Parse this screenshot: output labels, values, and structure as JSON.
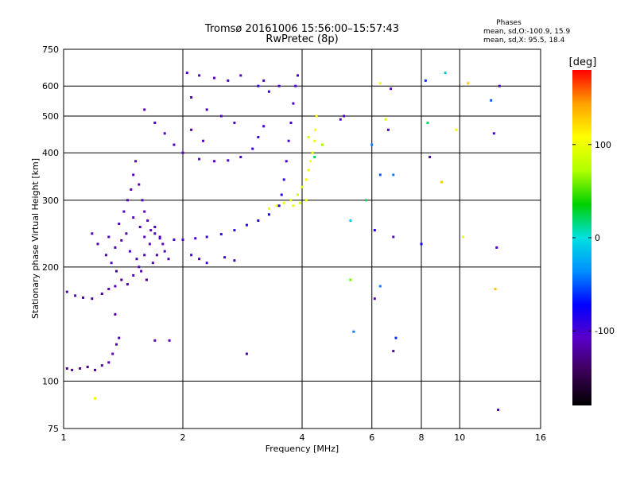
{
  "header": {
    "title_line1": "Tromsø 20161006 15:56:00–15:57:43",
    "title_line2": "RwPretec (8p)",
    "stats_title": "Phases",
    "stats_o": "mean, sd,O:-100.9, 15.9",
    "stats_x": "mean, sd,X:  95.5, 18.4"
  },
  "colorbar": {
    "unit_label": "[deg]",
    "min": -180,
    "max": 180,
    "ticks": [
      {
        "value": 100,
        "label": "100"
      },
      {
        "value": 0,
        "label": "0"
      },
      {
        "value": -100,
        "label": "-100"
      }
    ],
    "colors": [
      "#000000",
      "#3a0055",
      "#5a00c8",
      "#0000ff",
      "#0090ff",
      "#00e0e0",
      "#00d000",
      "#b0ff00",
      "#ffff00",
      "#ffa000",
      "#ff0000"
    ]
  },
  "chart_data": {
    "type": "scatter",
    "title": "Tromsø 20161006 15:56:00–15:57:43 RwPretec (8p)",
    "xlabel": "Frequency [MHz]",
    "ylabel": "Stationary phase Virtual Height [km]",
    "xscale": "log",
    "yscale": "log",
    "xlim": [
      1,
      16
    ],
    "ylim": [
      75,
      750
    ],
    "grid": true,
    "x_ticks": [
      1,
      2,
      4,
      6,
      8,
      10,
      16
    ],
    "x_tick_labels": [
      "1",
      "2",
      "4",
      "6",
      "8",
      "10",
      "16"
    ],
    "y_ticks": [
      75,
      100,
      200,
      300,
      400,
      500,
      600,
      750
    ],
    "y_tick_labels": [
      "75",
      "100",
      "200",
      "300",
      "400",
      "500",
      "600",
      "750"
    ],
    "color_variable": "Phase [deg]",
    "series": [
      {
        "points": [
          [
            1.02,
            108,
            -125
          ],
          [
            1.05,
            107,
            -120
          ],
          [
            1.1,
            108,
            -125
          ],
          [
            1.15,
            109,
            -130
          ],
          [
            1.2,
            107,
            -125
          ],
          [
            1.25,
            110,
            -120
          ],
          [
            1.3,
            112,
            -115
          ],
          [
            1.33,
            118,
            -110
          ],
          [
            1.36,
            125,
            -110
          ],
          [
            1.38,
            130,
            -115
          ],
          [
            1.02,
            172,
            -120
          ],
          [
            1.07,
            168,
            -120
          ],
          [
            1.12,
            166,
            -125
          ],
          [
            1.18,
            165,
            -125
          ],
          [
            1.25,
            170,
            -120
          ],
          [
            1.3,
            175,
            -115
          ],
          [
            1.35,
            178,
            -115
          ]
        ]
      },
      {
        "points": [
          [
            1.18,
            245,
            -115
          ],
          [
            1.22,
            230,
            -120
          ],
          [
            1.28,
            215,
            -120
          ],
          [
            1.32,
            205,
            -115
          ],
          [
            1.36,
            195,
            -120
          ],
          [
            1.4,
            185,
            -125
          ],
          [
            1.45,
            180,
            -120
          ],
          [
            1.5,
            190,
            -115
          ],
          [
            1.55,
            200,
            -110
          ],
          [
            1.6,
            215,
            -115
          ],
          [
            1.65,
            230,
            -110
          ],
          [
            1.7,
            255,
            -115
          ],
          [
            1.75,
            240,
            -110
          ],
          [
            1.8,
            220,
            -105
          ],
          [
            1.38,
            260,
            -115
          ],
          [
            1.42,
            280,
            -110
          ],
          [
            1.45,
            300,
            -110
          ],
          [
            1.48,
            320,
            -115
          ],
          [
            1.5,
            350,
            -110
          ],
          [
            1.52,
            380,
            -115
          ],
          [
            1.55,
            330,
            -110
          ],
          [
            1.58,
            300,
            -105
          ],
          [
            1.6,
            280,
            -110
          ],
          [
            1.63,
            265,
            -115
          ],
          [
            1.66,
            250,
            -110
          ],
          [
            1.7,
            245,
            -115
          ],
          [
            1.4,
            235,
            -120
          ],
          [
            1.47,
            220,
            -115
          ],
          [
            1.53,
            210,
            -120
          ],
          [
            1.57,
            195,
            -115
          ],
          [
            1.62,
            185,
            -120
          ],
          [
            1.68,
            205,
            -110
          ],
          [
            1.72,
            215,
            -115
          ],
          [
            1.78,
            230,
            -110
          ],
          [
            1.84,
            210,
            -115
          ],
          [
            1.5,
            270,
            -112
          ],
          [
            1.56,
            255,
            -108
          ],
          [
            1.44,
            245,
            -118
          ],
          [
            1.35,
            225,
            -118
          ],
          [
            1.3,
            240,
            -112
          ]
        ]
      },
      {
        "points": [
          [
            1.6,
            240,
            -105
          ],
          [
            1.75,
            238,
            -100
          ],
          [
            1.9,
            236,
            -100
          ],
          [
            2.0,
            236,
            -100
          ],
          [
            2.15,
            238,
            -100
          ],
          [
            2.3,
            240,
            -95
          ],
          [
            2.5,
            244,
            -95
          ],
          [
            2.7,
            250,
            -90
          ],
          [
            2.9,
            258,
            -85
          ],
          [
            3.1,
            265,
            -80
          ],
          [
            3.3,
            275,
            -80
          ],
          [
            3.5,
            290,
            -85
          ],
          [
            3.55,
            310,
            -90
          ],
          [
            3.6,
            340,
            -95
          ],
          [
            3.65,
            380,
            -100
          ],
          [
            3.7,
            430,
            -100
          ],
          [
            3.75,
            480,
            -100
          ],
          [
            3.8,
            540,
            -105
          ],
          [
            3.85,
            600,
            -105
          ],
          [
            3.9,
            640,
            -100
          ],
          [
            2.1,
            215,
            -95
          ],
          [
            2.2,
            210,
            -100
          ],
          [
            2.3,
            205,
            -100
          ],
          [
            2.55,
            212,
            -95
          ],
          [
            2.7,
            208,
            -100
          ]
        ]
      },
      {
        "points": [
          [
            3.3,
            285,
            100
          ],
          [
            3.45,
            290,
            105
          ],
          [
            3.6,
            295,
            100
          ],
          [
            3.75,
            300,
            95
          ],
          [
            3.9,
            310,
            90
          ],
          [
            4.0,
            325,
            95
          ],
          [
            4.1,
            340,
            100
          ],
          [
            4.15,
            360,
            100
          ],
          [
            4.2,
            380,
            105
          ],
          [
            4.25,
            400,
            100
          ],
          [
            4.3,
            430,
            100
          ],
          [
            4.32,
            460,
            105
          ],
          [
            4.35,
            500,
            110
          ],
          [
            4.1,
            300,
            95
          ],
          [
            3.95,
            295,
            90
          ],
          [
            3.8,
            290,
            100
          ]
        ]
      },
      {
        "points": [
          [
            1.6,
            520,
            -110
          ],
          [
            1.7,
            480,
            -105
          ],
          [
            1.8,
            450,
            -110
          ],
          [
            1.9,
            420,
            -115
          ],
          [
            2.0,
            400,
            -115
          ],
          [
            2.2,
            385,
            -110
          ],
          [
            2.4,
            380,
            -110
          ],
          [
            2.6,
            382,
            -105
          ],
          [
            2.8,
            390,
            -100
          ],
          [
            3.0,
            410,
            -95
          ],
          [
            3.1,
            440,
            -95
          ],
          [
            3.2,
            470,
            -100
          ],
          [
            2.05,
            650,
            -110
          ],
          [
            2.2,
            640,
            -115
          ],
          [
            2.4,
            630,
            -110
          ],
          [
            2.6,
            620,
            -105
          ],
          [
            2.8,
            640,
            -110
          ],
          [
            3.1,
            600,
            -95
          ],
          [
            3.3,
            580,
            -95
          ],
          [
            3.5,
            600,
            -100
          ],
          [
            2.1,
            560,
            -115
          ],
          [
            2.3,
            520,
            -115
          ],
          [
            2.5,
            500,
            -110
          ],
          [
            2.7,
            480,
            -105
          ],
          [
            2.1,
            460,
            -115
          ],
          [
            2.25,
            430,
            -110
          ]
        ]
      },
      {
        "points": [
          [
            1.2,
            90,
            100
          ],
          [
            1.35,
            150,
            -120
          ],
          [
            1.7,
            128,
            -115
          ],
          [
            1.85,
            128,
            -110
          ],
          [
            2.9,
            118,
            -120
          ],
          [
            3.2,
            620,
            -120
          ],
          [
            4.15,
            440,
            90
          ],
          [
            4.3,
            390,
            20
          ],
          [
            4.5,
            420,
            70
          ],
          [
            5.0,
            490,
            -110
          ],
          [
            5.1,
            500,
            -100
          ],
          [
            5.3,
            185,
            60
          ],
          [
            5.3,
            265,
            -10
          ],
          [
            5.4,
            135,
            -40
          ],
          [
            5.8,
            300,
            20
          ],
          [
            6.0,
            420,
            -40
          ],
          [
            6.1,
            165,
            -110
          ],
          [
            6.1,
            250,
            -80
          ],
          [
            6.3,
            350,
            -50
          ],
          [
            6.3,
            178,
            -40
          ],
          [
            6.3,
            610,
            100
          ],
          [
            6.5,
            490,
            90
          ],
          [
            6.6,
            460,
            -110
          ],
          [
            6.7,
            590,
            -110
          ],
          [
            6.8,
            240,
            -110
          ],
          [
            6.8,
            350,
            -40
          ],
          [
            6.8,
            120,
            -120
          ],
          [
            6.9,
            130,
            -60
          ],
          [
            8.0,
            230,
            -80
          ],
          [
            8.2,
            620,
            -60
          ],
          [
            8.3,
            480,
            20
          ],
          [
            8.4,
            390,
            -110
          ],
          [
            9.0,
            335,
            130
          ],
          [
            9.2,
            650,
            -10
          ],
          [
            9.8,
            460,
            100
          ],
          [
            10.2,
            240,
            100
          ],
          [
            10.5,
            610,
            130
          ],
          [
            12.0,
            550,
            -50
          ],
          [
            12.2,
            450,
            -100
          ],
          [
            12.3,
            175,
            130
          ],
          [
            12.4,
            225,
            -100
          ],
          [
            12.5,
            84,
            -120
          ],
          [
            12.6,
            600,
            -100
          ]
        ]
      }
    ]
  }
}
